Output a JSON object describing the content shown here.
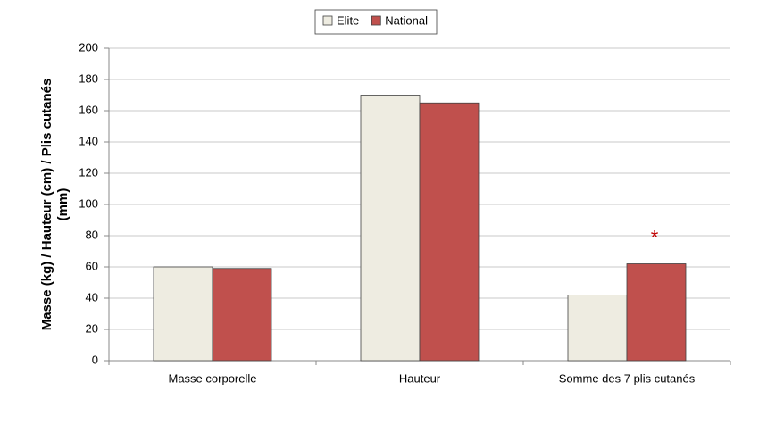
{
  "chart_data": {
    "type": "bar",
    "y_label": [
      "Masse (kg) / Hauteur (cm) / Plis cutanés",
      "(mm)"
    ],
    "categories": [
      "Masse corporelle",
      "Hauteur",
      "Somme des 7 plis cutanés"
    ],
    "series": [
      {
        "name": "Elite",
        "color": "#eeece1",
        "values": [
          60,
          170,
          42
        ]
      },
      {
        "name": "National",
        "color": "#c0504d",
        "values": [
          59,
          165,
          62
        ]
      }
    ],
    "annotations": [
      {
        "text": "*",
        "category": "Somme des 7 plis cutanés",
        "series": "National",
        "color": "#c00000"
      }
    ],
    "ylim": [
      0,
      200
    ],
    "yticks": [
      0,
      20,
      40,
      60,
      80,
      100,
      120,
      140,
      160,
      180,
      200
    ],
    "grid": true,
    "legend": "top"
  }
}
